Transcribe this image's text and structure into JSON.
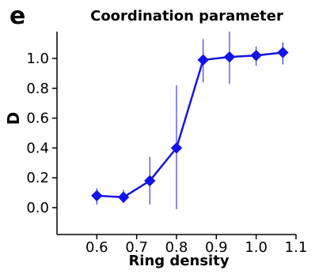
{
  "panel_label": "e",
  "chart_data": {
    "type": "line",
    "title": "Coordination parameter",
    "xlabel": "Ring density",
    "ylabel": "D",
    "xlim": [
      0.5,
      1.1
    ],
    "ylim": [
      -0.18,
      1.18
    ],
    "x_ticks": [
      0.6,
      0.7,
      0.8,
      0.9,
      1.0,
      1.1
    ],
    "x_tick_labels": [
      "0.6",
      "0.7",
      "0.8",
      "0.9",
      "1.0",
      "1.1"
    ],
    "y_ticks": [
      0.0,
      0.2,
      0.4,
      0.6,
      0.8,
      1.0
    ],
    "y_tick_labels": [
      "0.0",
      "0.2",
      "0.4",
      "0.6",
      "0.8",
      "1.0"
    ],
    "grid": false,
    "legend": "none",
    "series": [
      {
        "color": "#1414e6",
        "marker": "diamond",
        "x": [
          0.6,
          0.667,
          0.733,
          0.8,
          0.867,
          0.933,
          1.0,
          1.067
        ],
        "y": [
          0.08,
          0.07,
          0.18,
          0.4,
          0.99,
          1.01,
          1.02,
          1.04
        ],
        "y_err_low": [
          0.06,
          0.04,
          0.16,
          0.41,
          0.15,
          0.18,
          0.07,
          0.08
        ],
        "y_err_high": [
          0.05,
          0.05,
          0.16,
          0.42,
          0.14,
          0.17,
          0.06,
          0.07
        ]
      }
    ]
  }
}
